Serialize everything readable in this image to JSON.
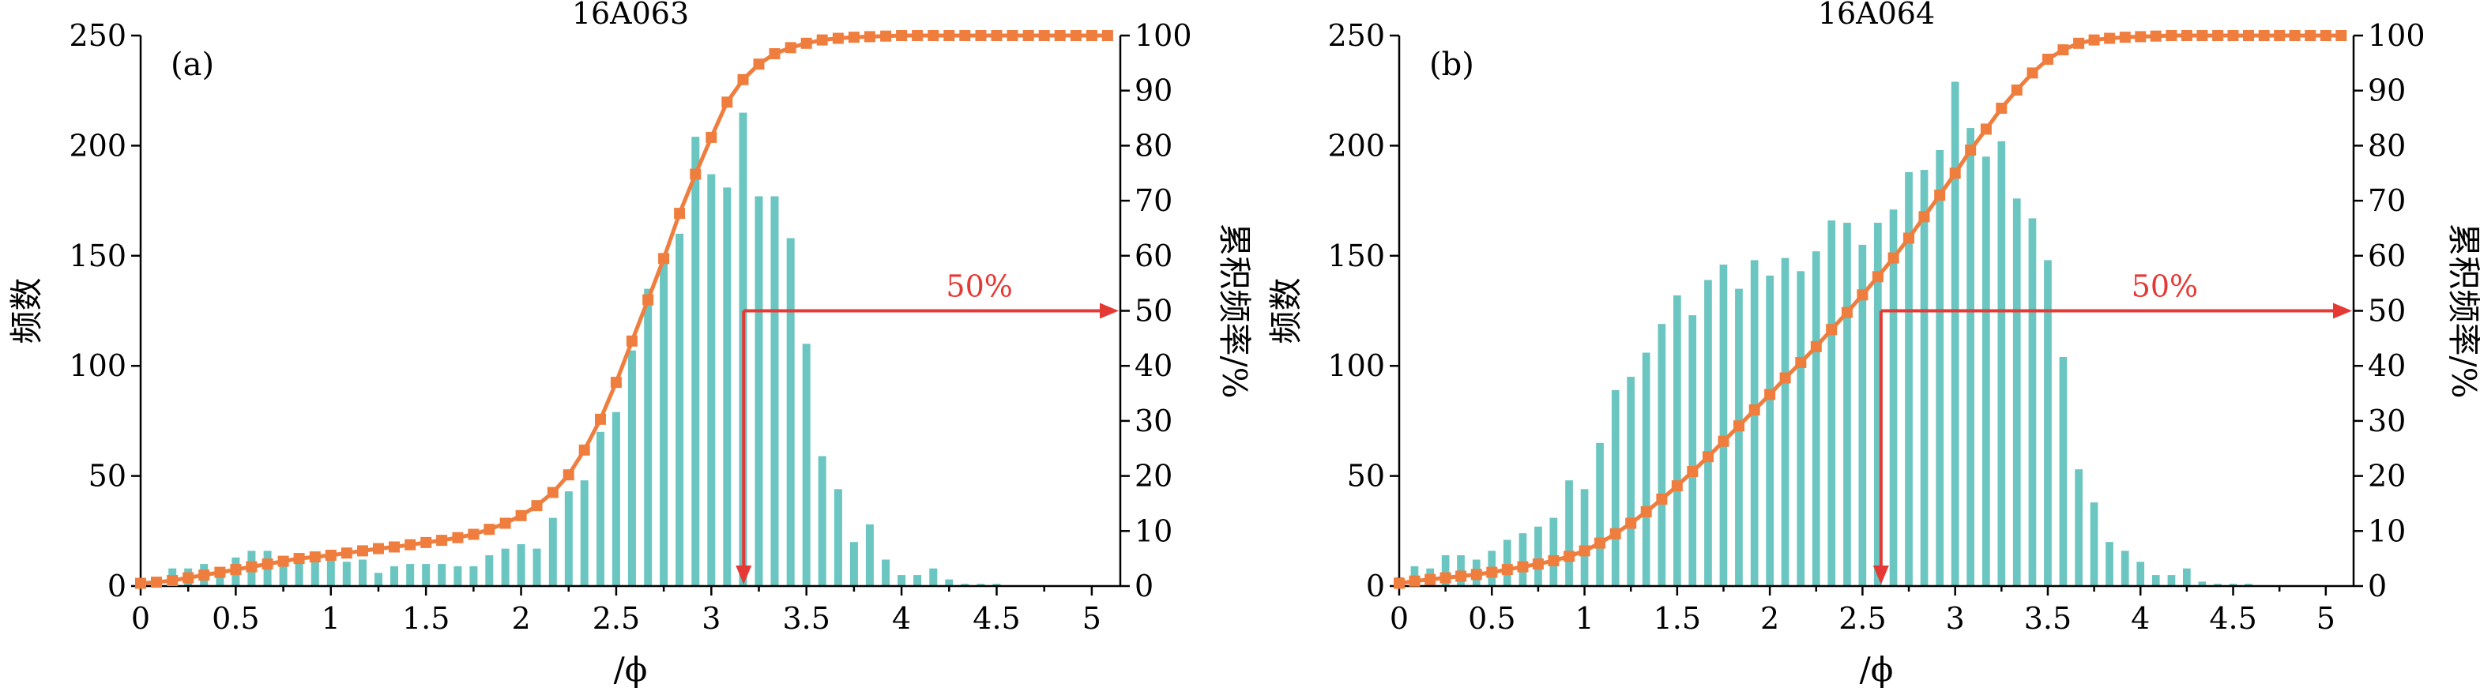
{
  "colors": {
    "bar": "#6bc5c0",
    "cumulative": "#ef7d3e",
    "marker": "#e53935",
    "axis": "#000000"
  },
  "chart_data": [
    {
      "type": "bar",
      "panel_label": "(a)",
      "title": "16A063",
      "xlabel": "/ϕ",
      "ylabel": "频数",
      "y2label": "累积频率/%",
      "xlim": [
        0,
        5.15
      ],
      "ylim": [
        0,
        250
      ],
      "y2lim": [
        0,
        100
      ],
      "x_ticks": [
        "0",
        "0.5",
        "1",
        "1.5",
        "2",
        "2.5",
        "3",
        "3.5",
        "4",
        "4.5",
        "5"
      ],
      "y_ticks": [
        "0",
        "50",
        "100",
        "150",
        "200",
        "250"
      ],
      "y2_ticks": [
        "0",
        "10",
        "20",
        "30",
        "40",
        "50",
        "60",
        "70",
        "80",
        "90",
        "100"
      ],
      "grid": false,
      "x": [
        0,
        0.083,
        0.167,
        0.25,
        0.333,
        0.417,
        0.5,
        0.583,
        0.667,
        0.75,
        0.833,
        0.917,
        1.0,
        1.083,
        1.167,
        1.25,
        1.333,
        1.417,
        1.5,
        1.583,
        1.667,
        1.75,
        1.833,
        1.917,
        2.0,
        2.083,
        2.167,
        2.25,
        2.333,
        2.417,
        2.5,
        2.583,
        2.667,
        2.75,
        2.833,
        2.917,
        3.0,
        3.083,
        3.167,
        3.25,
        3.333,
        3.417,
        3.5,
        3.583,
        3.667,
        3.75,
        3.833,
        3.917,
        4.0,
        4.083,
        4.167,
        4.25,
        4.333,
        4.417,
        4.5,
        4.583,
        4.667,
        4.75,
        4.833,
        4.917,
        5.0,
        5.083
      ],
      "series": [
        {
          "kind": "bar",
          "values": [
            3,
            4,
            8,
            8,
            10,
            5,
            13,
            16,
            16,
            11,
            12,
            13,
            12,
            11,
            12,
            6,
            9,
            10,
            10,
            10,
            9,
            9,
            14,
            17,
            19,
            17,
            31,
            43,
            48,
            70,
            79,
            107,
            135,
            151,
            160,
            204,
            187,
            181,
            215,
            177,
            177,
            158,
            110,
            59,
            44,
            20,
            28,
            12,
            5,
            5,
            8,
            3,
            1,
            1,
            1,
            0,
            0,
            0,
            0,
            0,
            0,
            0
          ]
        },
        {
          "kind": "line",
          "values": [
            0.5,
            0.7,
            1.0,
            1.5,
            2.0,
            2.5,
            3.0,
            3.5,
            4.0,
            4.5,
            5.0,
            5.3,
            5.6,
            6.0,
            6.4,
            6.8,
            7.1,
            7.5,
            7.9,
            8.3,
            8.8,
            9.4,
            10.3,
            11.4,
            12.8,
            14.6,
            17.0,
            20.2,
            24.7,
            30.3,
            37.0,
            44.5,
            52.0,
            59.5,
            67.7,
            74.8,
            81.5,
            87.9,
            92.0,
            94.8,
            96.7,
            97.8,
            98.6,
            99.2,
            99.5,
            99.7,
            99.8,
            99.9,
            100,
            100,
            100,
            100,
            100,
            100,
            100,
            100,
            100,
            100,
            100,
            100,
            100,
            100
          ]
        }
      ],
      "annotation": {
        "label": "50%",
        "median_phi": 3.17,
        "y2": 50
      }
    },
    {
      "type": "bar",
      "panel_label": "(b)",
      "title": "16A064",
      "xlabel": "/ϕ",
      "ylabel": "频数",
      "y2label": "累积频率/%",
      "xlim": [
        0,
        5.15
      ],
      "ylim": [
        0,
        250
      ],
      "y2lim": [
        0,
        100
      ],
      "x_ticks": [
        "0",
        "0.5",
        "1",
        "1.5",
        "2",
        "2.5",
        "3",
        "3.5",
        "4",
        "4.5",
        "5"
      ],
      "y_ticks": [
        "0",
        "50",
        "100",
        "150",
        "200",
        "250"
      ],
      "y2_ticks": [
        "0",
        "10",
        "20",
        "30",
        "40",
        "50",
        "60",
        "70",
        "80",
        "90",
        "100"
      ],
      "grid": false,
      "x": [
        0,
        0.083,
        0.167,
        0.25,
        0.333,
        0.417,
        0.5,
        0.583,
        0.667,
        0.75,
        0.833,
        0.917,
        1.0,
        1.083,
        1.167,
        1.25,
        1.333,
        1.417,
        1.5,
        1.583,
        1.667,
        1.75,
        1.833,
        1.917,
        2.0,
        2.083,
        2.167,
        2.25,
        2.333,
        2.417,
        2.5,
        2.583,
        2.667,
        2.75,
        2.833,
        2.917,
        3.0,
        3.083,
        3.167,
        3.25,
        3.333,
        3.417,
        3.5,
        3.583,
        3.667,
        3.75,
        3.833,
        3.917,
        4.0,
        4.083,
        4.167,
        4.25,
        4.333,
        4.417,
        4.5,
        4.583,
        4.667,
        4.75,
        4.833,
        4.917,
        5.0,
        5.083
      ],
      "series": [
        {
          "kind": "bar",
          "values": [
            4,
            9,
            8,
            14,
            14,
            12,
            16,
            21,
            24,
            27,
            31,
            48,
            44,
            65,
            89,
            95,
            106,
            119,
            132,
            123,
            139,
            146,
            135,
            148,
            141,
            149,
            143,
            152,
            166,
            165,
            155,
            165,
            171,
            188,
            189,
            198,
            229,
            208,
            195,
            202,
            176,
            167,
            148,
            104,
            53,
            38,
            20,
            16,
            11,
            5,
            5,
            8,
            2,
            1,
            1,
            1,
            0,
            0,
            0,
            0,
            0,
            0
          ]
        },
        {
          "kind": "line",
          "values": [
            0.5,
            0.9,
            1.2,
            1.5,
            1.8,
            2.1,
            2.5,
            3.0,
            3.5,
            4.0,
            4.6,
            5.4,
            6.4,
            7.8,
            9.5,
            11.4,
            13.5,
            15.8,
            18.2,
            20.8,
            23.5,
            26.3,
            29.1,
            32.0,
            34.8,
            37.8,
            40.6,
            43.5,
            46.6,
            49.7,
            52.9,
            56.2,
            59.6,
            63.2,
            67.1,
            71.0,
            75.0,
            79.2,
            83.0,
            86.8,
            90.1,
            93.2,
            95.7,
            97.4,
            98.6,
            99.2,
            99.5,
            99.7,
            99.8,
            99.9,
            100,
            100,
            100,
            100,
            100,
            100,
            100,
            100,
            100,
            100,
            100,
            100
          ]
        }
      ],
      "annotation": {
        "label": "50%",
        "median_phi": 2.6,
        "y2": 50
      }
    }
  ]
}
